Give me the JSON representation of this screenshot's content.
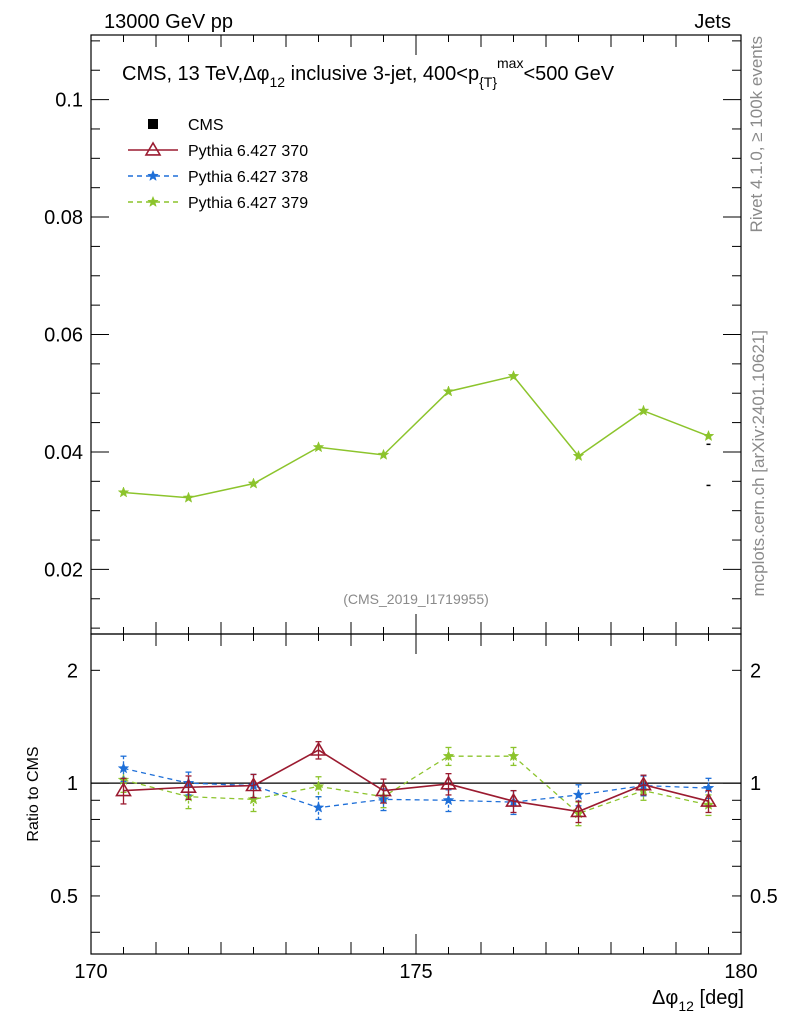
{
  "header": {
    "left": "13000 GeV pp",
    "right": "Jets"
  },
  "side_labels": {
    "rivet": "Rivet 4.1.0, ≥ 100k events",
    "mcplots": "mcplots.cern.ch [arXiv:2401.10621]"
  },
  "chart_data": {
    "type": "line",
    "title": {
      "prefix": "CMS, 13 TeV,",
      "dphi": "Δφ",
      "sub12": "12",
      "mid": " inclusive 3-jet, 400<p",
      "subT": "{T}",
      "supmax": "max",
      "suffix": "<500 GeV"
    },
    "watermark": "(CMS_2019_I1719955)",
    "x": [
      170.5,
      171.5,
      172.5,
      173.5,
      174.5,
      175.5,
      176.5,
      177.5,
      178.5,
      179.5
    ],
    "xlim": [
      170,
      180
    ],
    "xticks": [
      "170",
      "175",
      "180"
    ],
    "xlabel": {
      "main": "Δφ",
      "sub": "12",
      "unit": " [deg]"
    },
    "main_panel": {
      "ylim": [
        0.009,
        0.111
      ],
      "yticks": [
        "0.02",
        "0.04",
        "0.06",
        "0.08",
        "0.1"
      ],
      "series": [
        {
          "name": "Pythia 6.427 379",
          "color": "#8cc42c",
          "values": [
            0.0331,
            0.0322,
            0.0346,
            0.0408,
            0.0395,
            0.0503,
            0.0529,
            0.0393,
            0.047,
            0.0427
          ]
        }
      ],
      "partial_marks": [
        {
          "x": 179.5,
          "y_high": 0.0413,
          "y_low": 0.0343
        }
      ]
    },
    "ratio_panel": {
      "ylabel": "Ratio to CMS",
      "ylim": [
        0.35,
        2.5
      ],
      "yticks": [
        "0.5",
        "1",
        "2"
      ],
      "reference": 1.0,
      "series": [
        {
          "name": "Pythia 6.427 370",
          "color": "#9b1b30",
          "marker": "triangle",
          "dash": "solid",
          "values": [
            0.955,
            0.975,
            0.985,
            1.225,
            0.955,
            0.995,
            0.895,
            0.84,
            0.99,
            0.895
          ],
          "errors": [
            0.075,
            0.07,
            0.07,
            0.065,
            0.07,
            0.065,
            0.06,
            0.055,
            0.06,
            0.06
          ]
        },
        {
          "name": "Pythia 6.427 378",
          "color": "#1e6fd8",
          "marker": "star",
          "dash": "dashed",
          "values": [
            1.095,
            1.0,
            0.985,
            0.86,
            0.905,
            0.9,
            0.89,
            0.93,
            0.985,
            0.97
          ],
          "errors": [
            0.085,
            0.07,
            0.07,
            0.06,
            0.06,
            0.06,
            0.065,
            0.06,
            0.06,
            0.06
          ]
        },
        {
          "name": "Pythia 6.427 379",
          "color": "#8cc42c",
          "marker": "star",
          "dash": "dashed",
          "values": [
            1.02,
            0.92,
            0.905,
            0.98,
            0.92,
            1.18,
            1.18,
            0.83,
            0.955,
            0.875
          ],
          "errors": [
            0.075,
            0.065,
            0.065,
            0.06,
            0.06,
            0.065,
            0.065,
            0.06,
            0.055,
            0.055
          ]
        }
      ]
    },
    "legend": {
      "placement": "top-left",
      "entries": [
        {
          "label": "CMS",
          "marker": "square",
          "color": "#000000"
        },
        {
          "label": "Pythia 6.427 370",
          "marker": "triangle",
          "color": "#9b1b30"
        },
        {
          "label": "Pythia 6.427 378",
          "marker": "star",
          "color": "#1e6fd8"
        },
        {
          "label": "Pythia 6.427 379",
          "marker": "star",
          "color": "#8cc42c"
        }
      ]
    }
  }
}
